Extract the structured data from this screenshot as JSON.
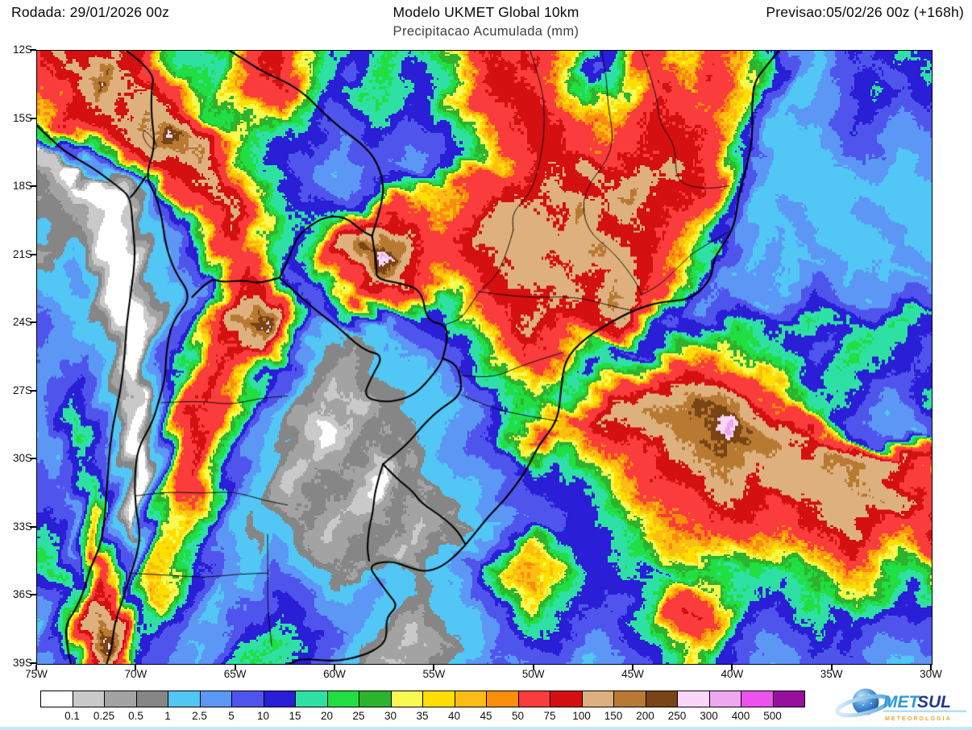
{
  "header": {
    "left": "Rodada: 29/01/2026 00z",
    "center": "Modelo UKMET Global 10km",
    "right": "Previsao:05/02/26 00z (+168h)",
    "subtitle": "Precipitacao Acumulada (mm)"
  },
  "axes": {
    "lat_labels": [
      "12S",
      "15S",
      "18S",
      "21S",
      "24S",
      "27S",
      "30S",
      "33S",
      "36S",
      "39S"
    ],
    "lon_labels": [
      "75W",
      "70W",
      "65W",
      "60W",
      "55W",
      "50W",
      "45W",
      "40W",
      "35W",
      "30W"
    ]
  },
  "legend": {
    "labels": [
      "0.1",
      "0.25",
      "0.5",
      "1",
      "2.5",
      "5",
      "10",
      "15",
      "20",
      "25",
      "30",
      "35",
      "40",
      "45",
      "50",
      "75",
      "100",
      "150",
      "200",
      "250",
      "300",
      "400",
      "500"
    ],
    "colors": [
      "#FFFFFF",
      "#C9C9C9",
      "#A3A3A3",
      "#868686",
      "#52C6F5",
      "#5C97F5",
      "#4F55EC",
      "#2A1ED6",
      "#2FE0A4",
      "#21DE42",
      "#2EB32E",
      "#F9F952",
      "#FFDF00",
      "#FBBC14",
      "#FA8D0C",
      "#FA3C3C",
      "#D41010",
      "#DEB07E",
      "#B87A33",
      "#7A4416",
      "#FAD7F8",
      "#EFA8EF",
      "#EC52EC",
      "#970F9E"
    ]
  },
  "logo": {
    "brand_primary": "MET",
    "brand_secondary": "SUL",
    "tagline": "METEOROLOGIA"
  },
  "chart_data": {
    "type": "heatmap",
    "title": "Precipitacao Acumulada (mm)",
    "model": "UKMET Global 10km",
    "run": "29/01/2026 00z",
    "valid": "05/02/26 00z (+168h)",
    "lon_start_w": 75,
    "lon_end_w": 30,
    "lat_start_s": 12,
    "lat_end_s": 39,
    "levels_mm": [
      0.1,
      0.25,
      0.5,
      1,
      2.5,
      5,
      10,
      15,
      20,
      25,
      30,
      35,
      40,
      45,
      50,
      75,
      100,
      150,
      200,
      250,
      300,
      400,
      500
    ],
    "precip_mm_grid": [
      [
        85,
        120,
        85,
        85,
        60,
        85,
        47,
        22,
        17,
        22,
        47,
        85,
        85,
        60,
        37,
        17,
        12,
        17,
        22,
        17,
        22,
        42,
        85,
        85,
        60,
        85,
        60,
        37,
        12,
        12,
        60,
        85,
        42,
        37,
        60,
        47,
        42,
        17,
        4,
        2,
        7,
        12,
        7,
        12,
        17,
        12
      ],
      [
        60,
        85,
        120,
        270,
        120,
        85,
        60,
        37,
        22,
        17,
        42,
        60,
        85,
        42,
        22,
        12,
        7,
        17,
        22,
        12,
        17,
        22,
        47,
        85,
        85,
        60,
        42,
        22,
        7,
        12,
        42,
        60,
        37,
        42,
        85,
        60,
        37,
        22,
        2,
        2,
        4,
        7,
        12,
        7,
        12,
        17
      ],
      [
        47,
        60,
        85,
        120,
        85,
        120,
        85,
        60,
        37,
        22,
        37,
        60,
        60,
        37,
        17,
        12,
        17,
        22,
        17,
        12,
        17,
        37,
        60,
        85,
        85,
        85,
        60,
        42,
        17,
        22,
        47,
        85,
        60,
        47,
        60,
        42,
        22,
        7,
        2,
        2,
        4,
        12,
        17,
        12,
        7,
        12
      ],
      [
        22,
        47,
        85,
        85,
        120,
        170,
        120,
        85,
        47,
        22,
        22,
        42,
        37,
        22,
        12,
        7,
        12,
        17,
        12,
        7,
        12,
        22,
        42,
        60,
        85,
        85,
        85,
        60,
        42,
        37,
        60,
        85,
        85,
        60,
        47,
        37,
        17,
        2,
        2,
        4,
        7,
        12,
        12,
        7,
        4,
        7
      ],
      [
        0,
        0.4,
        17,
        47,
        85,
        85,
        170,
        270,
        120,
        60,
        37,
        22,
        17,
        12,
        7,
        4,
        7,
        12,
        7,
        4,
        7,
        17,
        22,
        42,
        60,
        85,
        85,
        60,
        60,
        47,
        60,
        85,
        85,
        85,
        60,
        42,
        12,
        2,
        2,
        2,
        4,
        7,
        7,
        4,
        4,
        4
      ],
      [
        0.4,
        0.15,
        0,
        4,
        22,
        60,
        85,
        120,
        170,
        85,
        42,
        22,
        12,
        7,
        4,
        2,
        4,
        7,
        4,
        4,
        7,
        12,
        17,
        37,
        60,
        85,
        85,
        85,
        120,
        85,
        85,
        85,
        120,
        85,
        60,
        22,
        4,
        2,
        2,
        2,
        2,
        4,
        4,
        2,
        2,
        4
      ],
      [
        0.7,
        0.4,
        0.15,
        0,
        0.4,
        2,
        37,
        60,
        85,
        120,
        60,
        37,
        22,
        12,
        7,
        4,
        7,
        12,
        17,
        22,
        37,
        42,
        60,
        60,
        85,
        85,
        120,
        85,
        85,
        120,
        170,
        120,
        85,
        85,
        47,
        17,
        4,
        2,
        2,
        2,
        2,
        2,
        2,
        2,
        2,
        2
      ],
      [
        0.4,
        0.7,
        0.4,
        0.15,
        0,
        0.7,
        4,
        17,
        42,
        85,
        120,
        60,
        37,
        17,
        12,
        12,
        17,
        42,
        60,
        47,
        42,
        47,
        60,
        85,
        120,
        120,
        85,
        170,
        120,
        85,
        120,
        85,
        85,
        60,
        37,
        12,
        2,
        2,
        4,
        2,
        2,
        2,
        4,
        2,
        2,
        2
      ],
      [
        2,
        0.7,
        0.4,
        0.15,
        0,
        0.15,
        2,
        7,
        22,
        60,
        85,
        42,
        22,
        12,
        17,
        37,
        85,
        120,
        85,
        60,
        47,
        60,
        85,
        120,
        120,
        120,
        120,
        120,
        120,
        85,
        85,
        85,
        60,
        47,
        22,
        4,
        2,
        2,
        2,
        4,
        2,
        2,
        2,
        4,
        2,
        2
      ],
      [
        0.4,
        0.7,
        2,
        0.4,
        0,
        0.15,
        2,
        4,
        12,
        37,
        60,
        37,
        17,
        12,
        22,
        60,
        170,
        350,
        170,
        85,
        60,
        60,
        85,
        85,
        120,
        120,
        85,
        120,
        170,
        120,
        85,
        85,
        60,
        42,
        17,
        4,
        2,
        4,
        2,
        2,
        4,
        2,
        2,
        2,
        4,
        2
      ],
      [
        2,
        2,
        4,
        0.4,
        0,
        0.15,
        0.7,
        2,
        7,
        42,
        85,
        60,
        22,
        7,
        12,
        42,
        85,
        170,
        120,
        60,
        42,
        42,
        60,
        85,
        85,
        120,
        120,
        85,
        85,
        120,
        120,
        85,
        47,
        22,
        7,
        2,
        4,
        2,
        2,
        7,
        4,
        2,
        4,
        2,
        2,
        4
      ],
      [
        4,
        2,
        2,
        0.4,
        0,
        0,
        0.4,
        2,
        4,
        22,
        85,
        120,
        47,
        12,
        7,
        12,
        37,
        60,
        42,
        17,
        12,
        22,
        42,
        60,
        85,
        85,
        120,
        120,
        85,
        170,
        120,
        60,
        22,
        7,
        4,
        7,
        2,
        4,
        7,
        12,
        7,
        4,
        2,
        4,
        7,
        4
      ],
      [
        7,
        4,
        2,
        2,
        0.15,
        0,
        0.4,
        4,
        12,
        47,
        170,
        270,
        85,
        22,
        7,
        2,
        0.7,
        2,
        7,
        12,
        12,
        17,
        37,
        60,
        85,
        120,
        85,
        85,
        85,
        120,
        42,
        12,
        7,
        12,
        17,
        22,
        17,
        12,
        17,
        22,
        17,
        12,
        12,
        17,
        22,
        17
      ],
      [
        7,
        4,
        4,
        2,
        0.15,
        0,
        2,
        7,
        17,
        60,
        120,
        85,
        37,
        7,
        2,
        0.7,
        0.4,
        0.7,
        2,
        4,
        7,
        12,
        22,
        47,
        60,
        85,
        60,
        42,
        22,
        12,
        7,
        12,
        22,
        37,
        42,
        37,
        22,
        17,
        12,
        7,
        12,
        17,
        22,
        17,
        12,
        7
      ],
      [
        4,
        4,
        7,
        2,
        0.4,
        0,
        2,
        12,
        37,
        85,
        60,
        22,
        7,
        2,
        0.7,
        0.4,
        0.4,
        0.7,
        2,
        2,
        4,
        7,
        17,
        27,
        42,
        60,
        42,
        22,
        12,
        22,
        42,
        60,
        60,
        47,
        60,
        47,
        37,
        22,
        17,
        12,
        17,
        22,
        17,
        12,
        7,
        12
      ],
      [
        4,
        7,
        12,
        4,
        0.4,
        0.15,
        4,
        22,
        60,
        85,
        42,
        17,
        4,
        0.7,
        0.4,
        0.15,
        0.4,
        0.7,
        0.7,
        2,
        2,
        4,
        7,
        17,
        27,
        37,
        22,
        17,
        37,
        60,
        85,
        120,
        120,
        120,
        85,
        85,
        60,
        42,
        22,
        12,
        17,
        12,
        7,
        4,
        7,
        17
      ],
      [
        2,
        7,
        17,
        4,
        0.15,
        0,
        2,
        37,
        85,
        60,
        22,
        7,
        2,
        0.4,
        0.15,
        0.4,
        0.15,
        0.4,
        0.7,
        0.7,
        2,
        2,
        4,
        12,
        22,
        17,
        37,
        60,
        85,
        120,
        120,
        170,
        170,
        220,
        220,
        170,
        120,
        85,
        60,
        22,
        12,
        7,
        4,
        2,
        4,
        12
      ],
      [
        2,
        4,
        22,
        7,
        0.4,
        0,
        4,
        47,
        85,
        42,
        17,
        4,
        2,
        0.4,
        0,
        0.15,
        0.4,
        0.7,
        0.4,
        0.7,
        2,
        4,
        7,
        12,
        37,
        60,
        47,
        37,
        47,
        60,
        85,
        120,
        170,
        170,
        220,
        350,
        220,
        170,
        120,
        85,
        42,
        17,
        7,
        4,
        2,
        7
      ],
      [
        4,
        2,
        12,
        17,
        2,
        0,
        7,
        60,
        85,
        37,
        12,
        4,
        0.7,
        0.4,
        0.15,
        0.4,
        0.7,
        0.4,
        0.7,
        0.4,
        2,
        2,
        4,
        7,
        12,
        22,
        17,
        22,
        37,
        42,
        60,
        85,
        120,
        120,
        170,
        170,
        120,
        120,
        120,
        120,
        170,
        170,
        120,
        120,
        85,
        85
      ],
      [
        7,
        4,
        7,
        22,
        2,
        0,
        12,
        60,
        60,
        22,
        7,
        2,
        0.4,
        0.15,
        0.4,
        0.7,
        0.15,
        0,
        0.4,
        0.7,
        0.4,
        2,
        2,
        4,
        7,
        12,
        12,
        17,
        22,
        37,
        42,
        60,
        85,
        85,
        120,
        120,
        85,
        120,
        120,
        120,
        120,
        170,
        120,
        85,
        60,
        47
      ],
      [
        12,
        7,
        4,
        37,
        4,
        0,
        17,
        47,
        42,
        17,
        4,
        2,
        0.7,
        0.4,
        0.7,
        0.4,
        0.15,
        0.4,
        0.7,
        0.4,
        0.7,
        0.4,
        2,
        4,
        7,
        7,
        12,
        12,
        17,
        22,
        37,
        42,
        60,
        60,
        85,
        85,
        85,
        60,
        85,
        85,
        120,
        120,
        170,
        120,
        85,
        60
      ],
      [
        17,
        12,
        2,
        42,
        7,
        0.15,
        22,
        42,
        22,
        7,
        2,
        0.7,
        2,
        0.7,
        0.4,
        0.15,
        0.4,
        0.7,
        0.4,
        0.15,
        0.4,
        0.7,
        0.4,
        2,
        4,
        7,
        7,
        12,
        12,
        17,
        22,
        37,
        42,
        47,
        60,
        60,
        47,
        60,
        60,
        85,
        85,
        120,
        85,
        60,
        47,
        85
      ],
      [
        22,
        17,
        4,
        47,
        12,
        2,
        37,
        37,
        17,
        4,
        2,
        0.7,
        4,
        2,
        0.7,
        0.4,
        0.7,
        0.4,
        0.15,
        0.4,
        0.7,
        0.4,
        2,
        7,
        17,
        37,
        22,
        12,
        12,
        17,
        22,
        22,
        37,
        37,
        42,
        37,
        42,
        37,
        42,
        60,
        60,
        85,
        60,
        42,
        37,
        60
      ],
      [
        17,
        22,
        7,
        60,
        17,
        2,
        42,
        37,
        12,
        4,
        2,
        2,
        7,
        4,
        2,
        0.7,
        0.4,
        0.7,
        2,
        0.7,
        2,
        4,
        7,
        22,
        42,
        47,
        37,
        17,
        12,
        12,
        17,
        12,
        17,
        22,
        22,
        17,
        22,
        17,
        22,
        37,
        42,
        47,
        42,
        22,
        17,
        37
      ],
      [
        7,
        12,
        22,
        85,
        42,
        7,
        47,
        22,
        7,
        2,
        4,
        7,
        12,
        7,
        4,
        2,
        2,
        4,
        2,
        0.7,
        2,
        2,
        4,
        12,
        22,
        37,
        22,
        17,
        12,
        7,
        12,
        22,
        42,
        60,
        47,
        22,
        17,
        12,
        17,
        22,
        22,
        37,
        22,
        17,
        12,
        22
      ],
      [
        4,
        17,
        47,
        170,
        85,
        12,
        22,
        12,
        4,
        2,
        7,
        12,
        17,
        12,
        7,
        4,
        4,
        2,
        0.7,
        0.4,
        0.7,
        2,
        2,
        7,
        12,
        22,
        17,
        12,
        7,
        12,
        17,
        22,
        60,
        85,
        60,
        22,
        12,
        7,
        12,
        17,
        12,
        17,
        12,
        7,
        7,
        12
      ],
      [
        2,
        12,
        60,
        270,
        120,
        17,
        12,
        7,
        2,
        4,
        12,
        17,
        22,
        17,
        12,
        7,
        2,
        0.7,
        0.4,
        0.15,
        0.4,
        0.7,
        2,
        4,
        7,
        12,
        12,
        7,
        4,
        7,
        12,
        17,
        42,
        60,
        42,
        17,
        7,
        4,
        7,
        12,
        7,
        12,
        7,
        4,
        4,
        7
      ],
      [
        2,
        7,
        37,
        120,
        60,
        12,
        7,
        4,
        2,
        7,
        17,
        22,
        17,
        12,
        7,
        4,
        2,
        0.4,
        0.15,
        0.4,
        0.7,
        2,
        4,
        7,
        4,
        7,
        7,
        4,
        2,
        4,
        7,
        12,
        22,
        37,
        22,
        12,
        4,
        2,
        4,
        7,
        4,
        7,
        4,
        2,
        2,
        4
      ]
    ]
  }
}
